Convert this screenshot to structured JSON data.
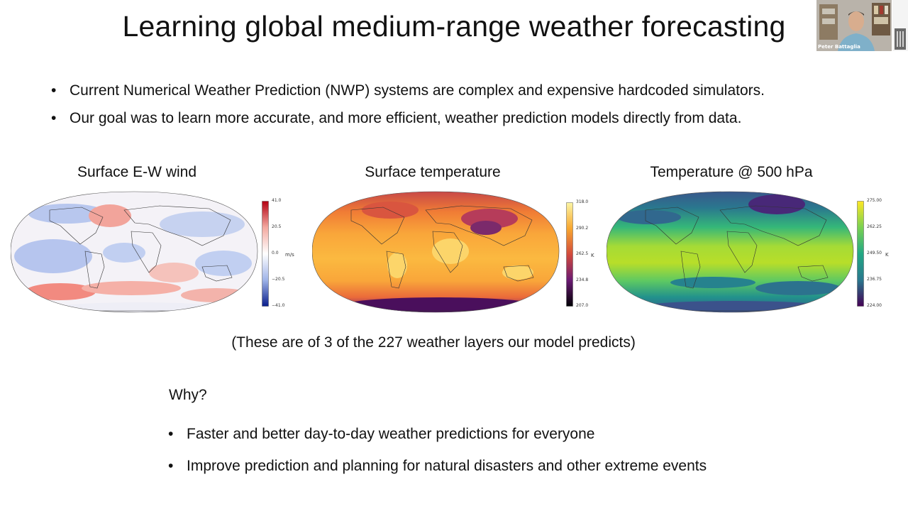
{
  "slide": {
    "title": "Learning global medium-range weather forecasting",
    "bullets": [
      "Current Numerical Weather Prediction (NWP) systems are complex and expensive hardcoded simulators.",
      "Our goal was to learn more accurate, and more efficient, weather prediction models directly from data."
    ],
    "caption": "(These are of 3 of the 227 weather layers our model predicts)",
    "why_heading": "Why?",
    "why_items": [
      "Faster and better day-to-day weather predictions for everyone",
      "Improve prediction and planning for natural disasters and other extreme events"
    ]
  },
  "maps": [
    {
      "title": "Surface E-W wind",
      "unit": "m/s",
      "ticks": [
        "41.0",
        "20.5",
        "0.0",
        "−20.5",
        "−41.0"
      ],
      "colormap": "red-white-blue",
      "colors": [
        "#b40012",
        "#f3a9a0",
        "#ffffff",
        "#9fb4e8",
        "#0a1e8c"
      ]
    },
    {
      "title": "Surface temperature",
      "unit": "K",
      "ticks": [
        "318.0",
        "290.2",
        "262.5",
        "234.8",
        "207.0"
      ],
      "colormap": "inferno",
      "colors": [
        "#fbf5a4",
        "#f8a730",
        "#d24a3c",
        "#6a1a72",
        "#000004"
      ]
    },
    {
      "title": "Temperature @ 500 hPa",
      "unit": "K",
      "ticks": [
        "275.00",
        "262.25",
        "249.50",
        "236.75",
        "224.00"
      ],
      "colormap": "viridis",
      "colors": [
        "#fde725",
        "#7ad151",
        "#22a884",
        "#2a788e",
        "#440154"
      ]
    }
  ],
  "webcam": {
    "name": "Peter Battaglia"
  }
}
